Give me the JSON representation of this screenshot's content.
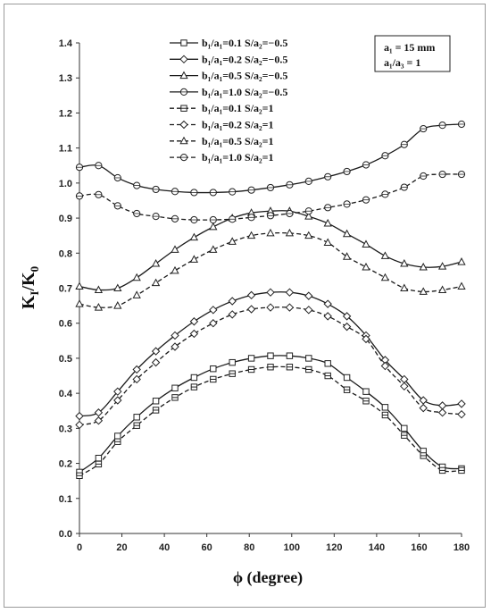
{
  "chart_data": {
    "type": "line",
    "xlabel": "ϕ (degree)",
    "ylabel": "K",
    "ylabel_sub1": "I",
    "ylabel_mid": "/K",
    "ylabel_sub2": "0",
    "xlim": [
      0,
      180
    ],
    "ylim": [
      0.0,
      1.4
    ],
    "x_ticks": [
      0,
      20,
      40,
      60,
      80,
      100,
      120,
      140,
      160,
      180
    ],
    "y_ticks": [
      "0.0",
      "0.1",
      "0.2",
      "0.3",
      "0.4",
      "0.5",
      "0.6",
      "0.7",
      "0.8",
      "0.9",
      "1.0",
      "1.1",
      "1.2",
      "1.3",
      "1.4"
    ],
    "grid": false,
    "legend_position": "top-center",
    "annotation": {
      "line1": "a₁ = 15 mm",
      "line2": "a₁/a₃ = 1"
    },
    "x": [
      0,
      9,
      18,
      27,
      36,
      45,
      54,
      63,
      72,
      81,
      90,
      99,
      108,
      117,
      126,
      135,
      144,
      153,
      162,
      171,
      180
    ],
    "series": [
      {
        "name": "b₁/a₁=0.1  S/a₂=−0.5",
        "marker": "square",
        "dash": false,
        "values": [
          0.175,
          0.215,
          0.278,
          0.332,
          0.378,
          0.415,
          0.445,
          0.47,
          0.488,
          0.5,
          0.507,
          0.507,
          0.5,
          0.485,
          0.445,
          0.405,
          0.36,
          0.3,
          0.235,
          0.19,
          0.185
        ]
      },
      {
        "name": "b₁/a₁=0.2  S/a₂=−0.5",
        "marker": "diamond",
        "dash": false,
        "values": [
          0.335,
          0.345,
          0.405,
          0.468,
          0.52,
          0.565,
          0.605,
          0.638,
          0.663,
          0.68,
          0.688,
          0.688,
          0.678,
          0.655,
          0.62,
          0.565,
          0.495,
          0.44,
          0.38,
          0.365,
          0.37
        ]
      },
      {
        "name": "b₁/a₁=0.5  S/a₂=−0.5",
        "marker": "triangle",
        "dash": false,
        "values": [
          0.705,
          0.695,
          0.7,
          0.73,
          0.77,
          0.81,
          0.845,
          0.875,
          0.9,
          0.915,
          0.92,
          0.92,
          0.905,
          0.885,
          0.855,
          0.825,
          0.792,
          0.77,
          0.76,
          0.762,
          0.775
        ]
      },
      {
        "name": "b₁/a₁=1.0  S/a₂=−0.5",
        "marker": "circle",
        "dash": false,
        "values": [
          1.045,
          1.05,
          1.015,
          0.993,
          0.982,
          0.976,
          0.973,
          0.973,
          0.975,
          0.98,
          0.987,
          0.995,
          1.005,
          1.018,
          1.033,
          1.052,
          1.078,
          1.11,
          1.155,
          1.165,
          1.168
        ]
      },
      {
        "name": "b₁/a₁=0.1  S/a₂=1",
        "marker": "square-half",
        "dash": true,
        "values": [
          0.165,
          0.198,
          0.262,
          0.308,
          0.352,
          0.388,
          0.418,
          0.44,
          0.456,
          0.468,
          0.475,
          0.475,
          0.468,
          0.45,
          0.41,
          0.378,
          0.338,
          0.28,
          0.222,
          0.18,
          0.18
        ]
      },
      {
        "name": "b₁/a₁=0.2  S/a₂=1",
        "marker": "diamond",
        "dash": true,
        "values": [
          0.31,
          0.322,
          0.38,
          0.44,
          0.488,
          0.533,
          0.57,
          0.6,
          0.625,
          0.64,
          0.645,
          0.645,
          0.638,
          0.62,
          0.59,
          0.555,
          0.478,
          0.42,
          0.358,
          0.345,
          0.34
        ]
      },
      {
        "name": "b₁/a₁=0.5  S/a₂=1",
        "marker": "triangle",
        "dash": true,
        "values": [
          0.655,
          0.645,
          0.65,
          0.68,
          0.715,
          0.75,
          0.782,
          0.81,
          0.833,
          0.85,
          0.857,
          0.857,
          0.85,
          0.83,
          0.79,
          0.76,
          0.73,
          0.7,
          0.69,
          0.695,
          0.705
        ]
      },
      {
        "name": "b₁/a₁=1.0  S/a₂=1",
        "marker": "circle",
        "dash": true,
        "values": [
          0.963,
          0.967,
          0.935,
          0.913,
          0.905,
          0.898,
          0.895,
          0.895,
          0.897,
          0.902,
          0.907,
          0.913,
          0.92,
          0.93,
          0.94,
          0.952,
          0.968,
          0.988,
          1.02,
          1.025,
          1.025
        ]
      }
    ]
  }
}
